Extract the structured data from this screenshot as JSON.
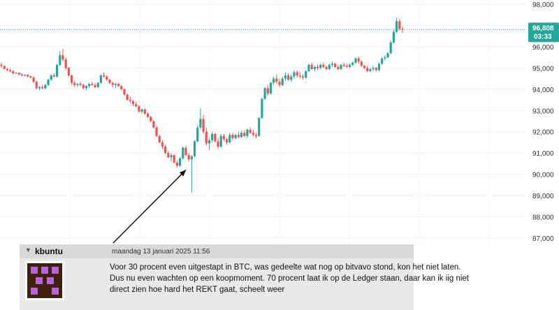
{
  "chart_data": {
    "type": "candlestick",
    "y_ticks": [
      87000,
      88000,
      89000,
      90000,
      91000,
      92000,
      93000,
      94000,
      95000,
      96000,
      97000,
      98000
    ],
    "y_tick_labels": [
      "87,000",
      "88,000",
      "89,000",
      "90,000",
      "91,000",
      "92,000",
      "93,000",
      "94,000",
      "95,000",
      "96,000",
      "97,000",
      "98,000"
    ],
    "ylim": [
      86700,
      98200
    ],
    "grid": true,
    "current_price": 96808,
    "current_price_label": "96,808",
    "countdown_label": "03:33",
    "colors": {
      "up": "#26a69a",
      "down": "#ef5350",
      "price_line": "#26a69a"
    },
    "annotation": {
      "type": "arrow",
      "target_price": 90300
    },
    "candles": [
      [
        95150,
        95250,
        95000,
        95100
      ],
      [
        95100,
        95100,
        94950,
        94950
      ],
      [
        94950,
        95000,
        94850,
        94900
      ],
      [
        94900,
        94950,
        94800,
        94850
      ],
      [
        94850,
        94900,
        94700,
        94750
      ],
      [
        94750,
        94800,
        94700,
        94780
      ],
      [
        94780,
        94800,
        94650,
        94700
      ],
      [
        94700,
        94750,
        94600,
        94650
      ],
      [
        94650,
        94700,
        94600,
        94680
      ],
      [
        94680,
        94700,
        94550,
        94600
      ],
      [
        94600,
        94650,
        94500,
        94550
      ],
      [
        94550,
        94600,
        94300,
        94350
      ],
      [
        94350,
        94400,
        94000,
        94050
      ],
      [
        94050,
        94150,
        93950,
        94100
      ],
      [
        94100,
        94200,
        94000,
        94050
      ],
      [
        94050,
        94250,
        94000,
        94200
      ],
      [
        94200,
        94500,
        94150,
        94450
      ],
      [
        94450,
        94700,
        94400,
        94650
      ],
      [
        94650,
        94750,
        94550,
        94600
      ],
      [
        94600,
        95200,
        94550,
        95150
      ],
      [
        95150,
        95800,
        95100,
        95600
      ],
      [
        95600,
        95900,
        95300,
        95400
      ],
      [
        95400,
        95500,
        94900,
        95000
      ],
      [
        95000,
        95050,
        94600,
        94650
      ],
      [
        94650,
        94700,
        94200,
        94300
      ],
      [
        94300,
        94400,
        94100,
        94200
      ],
      [
        94200,
        94300,
        94100,
        94250
      ],
      [
        94250,
        94350,
        94150,
        94200
      ],
      [
        94200,
        94250,
        94000,
        94050
      ],
      [
        94050,
        94200,
        93950,
        94150
      ],
      [
        94150,
        94300,
        94050,
        94250
      ],
      [
        94250,
        94350,
        94150,
        94200
      ],
      [
        94200,
        94300,
        94050,
        94100
      ],
      [
        94100,
        94350,
        94050,
        94300
      ],
      [
        94300,
        94700,
        94250,
        94650
      ],
      [
        94650,
        94800,
        94550,
        94600
      ],
      [
        94600,
        94650,
        94400,
        94450
      ],
      [
        94450,
        94500,
        94250,
        94300
      ],
      [
        94300,
        94350,
        94100,
        94200
      ],
      [
        94200,
        94300,
        94050,
        94250
      ],
      [
        94250,
        94300,
        94100,
        94150
      ],
      [
        94150,
        94200,
        93950,
        94000
      ],
      [
        94000,
        94050,
        93700,
        93750
      ],
      [
        93750,
        93800,
        93450,
        93500
      ],
      [
        93500,
        93650,
        93350,
        93450
      ],
      [
        93450,
        93500,
        93200,
        93300
      ],
      [
        93300,
        93400,
        93150,
        93200
      ],
      [
        93200,
        93250,
        92900,
        92950
      ],
      [
        92950,
        93100,
        92850,
        93050
      ],
      [
        93050,
        93100,
        92800,
        92850
      ],
      [
        92850,
        92900,
        92650,
        92700
      ],
      [
        92700,
        92750,
        92450,
        92500
      ],
      [
        92500,
        92550,
        92150,
        92200
      ],
      [
        92200,
        92300,
        91750,
        91800
      ],
      [
        91800,
        91850,
        91450,
        91500
      ],
      [
        91500,
        91600,
        91200,
        91300
      ],
      [
        91300,
        91400,
        90950,
        91000
      ],
      [
        91000,
        91100,
        90750,
        90800
      ],
      [
        90800,
        91000,
        90600,
        90900
      ],
      [
        90900,
        90950,
        90500,
        90550
      ],
      [
        90550,
        90650,
        90300,
        90400
      ],
      [
        90400,
        90800,
        90350,
        90750
      ],
      [
        90750,
        91300,
        90700,
        91250
      ],
      [
        91250,
        91350,
        90850,
        90900
      ],
      [
        90900,
        91000,
        90600,
        90700
      ],
      [
        90700,
        90900,
        89150,
        90850
      ],
      [
        90850,
        91600,
        90800,
        91550
      ],
      [
        91550,
        92300,
        91500,
        92200
      ],
      [
        92200,
        93100,
        92100,
        92600
      ],
      [
        92600,
        92800,
        91900,
        92000
      ],
      [
        92000,
        92200,
        91350,
        91450
      ],
      [
        91450,
        91700,
        91150,
        91600
      ],
      [
        91600,
        92000,
        91500,
        91900
      ],
      [
        91900,
        91950,
        91500,
        91550
      ],
      [
        91550,
        91700,
        91200,
        91300
      ],
      [
        91300,
        91900,
        91250,
        91800
      ],
      [
        91800,
        91900,
        91550,
        91650
      ],
      [
        91650,
        91700,
        91400,
        91500
      ],
      [
        91500,
        91950,
        91450,
        91850
      ],
      [
        91850,
        91950,
        91600,
        91700
      ],
      [
        91700,
        91900,
        91650,
        91850
      ],
      [
        91850,
        92000,
        91700,
        91750
      ],
      [
        91750,
        92050,
        91700,
        91950
      ],
      [
        91950,
        92050,
        91750,
        91800
      ],
      [
        91800,
        92150,
        91700,
        92100
      ],
      [
        92100,
        92200,
        91900,
        91950
      ],
      [
        91950,
        92100,
        91800,
        91850
      ],
      [
        91850,
        91950,
        91700,
        91800
      ],
      [
        91800,
        92700,
        91750,
        92650
      ],
      [
        92650,
        93600,
        92600,
        93550
      ],
      [
        93550,
        94100,
        93500,
        94050
      ],
      [
        94050,
        94200,
        93700,
        93800
      ],
      [
        93800,
        94350,
        93750,
        94300
      ],
      [
        94300,
        94600,
        94200,
        94500
      ],
      [
        94500,
        94700,
        94250,
        94350
      ],
      [
        94350,
        94500,
        94100,
        94200
      ],
      [
        94200,
        94600,
        94150,
        94500
      ],
      [
        94500,
        94800,
        94400,
        94650
      ],
      [
        94650,
        94750,
        94400,
        94450
      ],
      [
        94450,
        94700,
        94350,
        94600
      ],
      [
        94600,
        94900,
        94500,
        94800
      ],
      [
        94800,
        94900,
        94550,
        94650
      ],
      [
        94650,
        94800,
        94500,
        94600
      ],
      [
        94600,
        94700,
        94450,
        94550
      ],
      [
        94550,
        94900,
        94500,
        94850
      ],
      [
        94850,
        95200,
        94800,
        95150
      ],
      [
        95150,
        95250,
        94900,
        94950
      ],
      [
        94950,
        95100,
        94850,
        95050
      ],
      [
        95050,
        95150,
        94900,
        95000
      ],
      [
        95000,
        95200,
        94950,
        95150
      ],
      [
        95150,
        95250,
        95000,
        95050
      ],
      [
        95050,
        95100,
        94900,
        94950
      ],
      [
        94950,
        95200,
        94900,
        95150
      ],
      [
        95150,
        95300,
        95050,
        95200
      ],
      [
        95200,
        95250,
        95000,
        95050
      ],
      [
        95050,
        95150,
        94900,
        94950
      ],
      [
        94950,
        95200,
        94900,
        95150
      ],
      [
        95150,
        95250,
        95050,
        95100
      ],
      [
        95100,
        95200,
        95000,
        95050
      ],
      [
        95050,
        95200,
        95000,
        95150
      ],
      [
        95150,
        95300,
        95100,
        95250
      ],
      [
        95250,
        95500,
        95200,
        95450
      ],
      [
        95450,
        95550,
        95200,
        95300
      ],
      [
        95300,
        95350,
        95050,
        95100
      ],
      [
        95100,
        95150,
        94950,
        95000
      ],
      [
        95000,
        95100,
        94800,
        94850
      ],
      [
        94850,
        95000,
        94800,
        94950
      ],
      [
        94950,
        95100,
        94850,
        95000
      ],
      [
        95000,
        95050,
        94850,
        94900
      ],
      [
        94900,
        95250,
        94850,
        95200
      ],
      [
        95200,
        95500,
        95150,
        95450
      ],
      [
        95450,
        95600,
        95350,
        95500
      ],
      [
        95500,
        95750,
        95450,
        95700
      ],
      [
        95700,
        96300,
        95650,
        96200
      ],
      [
        96200,
        96800,
        96150,
        96700
      ],
      [
        96700,
        97350,
        96650,
        97200
      ],
      [
        97200,
        97300,
        96750,
        96850
      ],
      [
        96850,
        96950,
        96650,
        96808
      ]
    ]
  },
  "post": {
    "username": "kbuntu",
    "date": "maandag 13 januari 2025 11:56",
    "body": "Voor 30 procent even uitgestapt in BTC, was gedeelte wat nog op bitvavo stond, kon het niet laten. Dus nu even wachten op een koopmoment. 70 procent laat ik op de Ledger staan, daar kan ik iig niet direct zien hoe hard het REKT gaat, scheelt weer",
    "avatar_colors": {
      "background": "#3d1f0c",
      "pixels": "#b565d8"
    }
  }
}
